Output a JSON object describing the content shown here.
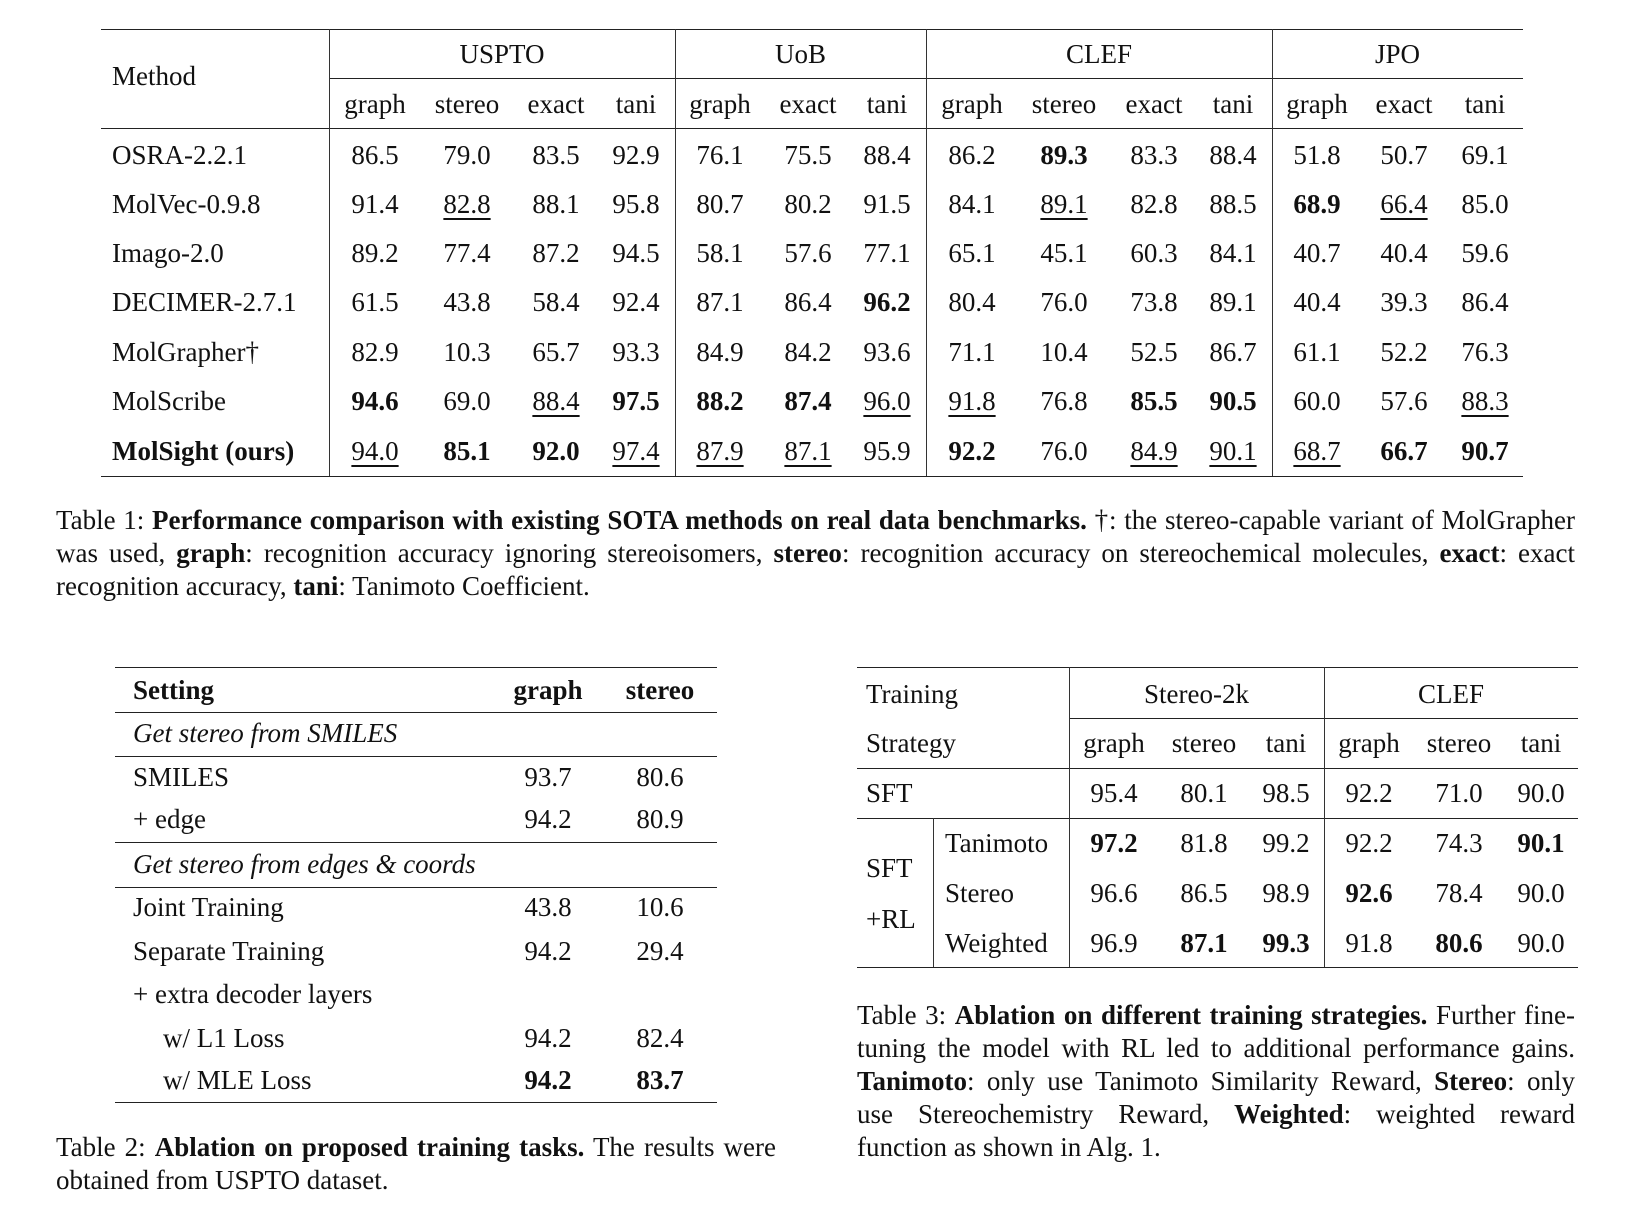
{
  "table1": {
    "method_header": "Method",
    "groups": [
      {
        "name": "USPTO",
        "cols": [
          "graph",
          "stereo",
          "exact",
          "tani"
        ]
      },
      {
        "name": "UoB",
        "cols": [
          "graph",
          "exact",
          "tani"
        ]
      },
      {
        "name": "CLEF",
        "cols": [
          "graph",
          "stereo",
          "exact",
          "tani"
        ]
      },
      {
        "name": "JPO",
        "cols": [
          "graph",
          "exact",
          "tani"
        ]
      }
    ],
    "rows": [
      {
        "method": "OSRA-2.2.1",
        "method_style": "",
        "values": [
          "86.5",
          "79.0",
          "83.5",
          "92.9",
          "76.1",
          "75.5",
          "88.4",
          "86.2",
          "89.3",
          "83.3",
          "88.4",
          "51.8",
          "50.7",
          "69.1"
        ],
        "styles": [
          "",
          "",
          "",
          "",
          "",
          "",
          "",
          "",
          "b",
          "",
          "",
          "",
          "",
          ""
        ]
      },
      {
        "method": "MolVec-0.9.8",
        "method_style": "",
        "values": [
          "91.4",
          "82.8",
          "88.1",
          "95.8",
          "80.7",
          "80.2",
          "91.5",
          "84.1",
          "89.1",
          "82.8",
          "88.5",
          "68.9",
          "66.4",
          "85.0"
        ],
        "styles": [
          "",
          "u",
          "",
          "",
          "",
          "",
          "",
          "",
          "u",
          "",
          "",
          "b",
          "u",
          ""
        ]
      },
      {
        "method": "Imago-2.0",
        "method_style": "",
        "values": [
          "89.2",
          "77.4",
          "87.2",
          "94.5",
          "58.1",
          "57.6",
          "77.1",
          "65.1",
          "45.1",
          "60.3",
          "84.1",
          "40.7",
          "40.4",
          "59.6"
        ],
        "styles": [
          "",
          "",
          "",
          "",
          "",
          "",
          "",
          "",
          "",
          "",
          "",
          "",
          "",
          ""
        ]
      },
      {
        "method": "DECIMER-2.7.1",
        "method_style": "",
        "values": [
          "61.5",
          "43.8",
          "58.4",
          "92.4",
          "87.1",
          "86.4",
          "96.2",
          "80.4",
          "76.0",
          "73.8",
          "89.1",
          "40.4",
          "39.3",
          "86.4"
        ],
        "styles": [
          "",
          "",
          "",
          "",
          "",
          "",
          "b",
          "",
          "",
          "",
          "",
          "",
          "",
          ""
        ]
      },
      {
        "method": "MolGrapher†",
        "method_style": "",
        "values": [
          "82.9",
          "10.3",
          "65.7",
          "93.3",
          "84.9",
          "84.2",
          "93.6",
          "71.1",
          "10.4",
          "52.5",
          "86.7",
          "61.1",
          "52.2",
          "76.3"
        ],
        "styles": [
          "",
          "",
          "",
          "",
          "",
          "",
          "",
          "",
          "",
          "",
          "",
          "",
          "",
          ""
        ]
      },
      {
        "method": "MolScribe",
        "method_style": "",
        "values": [
          "94.6",
          "69.0",
          "88.4",
          "97.5",
          "88.2",
          "87.4",
          "96.0",
          "91.8",
          "76.8",
          "85.5",
          "90.5",
          "60.0",
          "57.6",
          "88.3"
        ],
        "styles": [
          "b",
          "",
          "u",
          "b",
          "b",
          "b",
          "u",
          "u",
          "",
          "b",
          "b",
          "",
          "",
          "u"
        ]
      },
      {
        "method": "MolSight (ours)",
        "method_style": "b",
        "values": [
          "94.0",
          "85.1",
          "92.0",
          "97.4",
          "87.9",
          "87.1",
          "95.9",
          "92.2",
          "76.0",
          "84.9",
          "90.1",
          "68.7",
          "66.7",
          "90.7"
        ],
        "styles": [
          "u",
          "b",
          "b",
          "u",
          "u",
          "u",
          "",
          "b",
          "",
          "u",
          "u",
          "u",
          "b",
          "b"
        ]
      }
    ],
    "caption": [
      {
        "t": "Table 1: ",
        "s": ""
      },
      {
        "t": "Performance comparison with existing SOTA methods on real data benchmarks.",
        "s": "b"
      },
      {
        "t": " †: the stereo-capable variant of MolGrapher was used, ",
        "s": ""
      },
      {
        "t": "graph",
        "s": "b"
      },
      {
        "t": ": recognition accuracy ignoring stereoisomers, ",
        "s": ""
      },
      {
        "t": "stereo",
        "s": "b"
      },
      {
        "t": ": recognition accuracy on stereochemical molecules, ",
        "s": ""
      },
      {
        "t": "exact",
        "s": "b"
      },
      {
        "t": ": exact recognition accuracy, ",
        "s": ""
      },
      {
        "t": "tani",
        "s": "b"
      },
      {
        "t": ": Tanimoto Coefficient.",
        "s": ""
      }
    ]
  },
  "table2": {
    "headers": [
      "Setting",
      "graph",
      "stereo"
    ],
    "sections": [
      {
        "title": "Get stereo from SMILES",
        "rows": [
          {
            "label": "SMILES",
            "indent": false,
            "graph": "93.7",
            "stereo": "80.6",
            "style": ""
          },
          {
            "label": "+ edge",
            "indent": false,
            "graph": "94.2",
            "stereo": "80.9",
            "style": ""
          }
        ]
      },
      {
        "title": "Get stereo from edges & coords",
        "rows": [
          {
            "label": "Joint Training",
            "indent": false,
            "graph": "43.8",
            "stereo": "10.6",
            "style": ""
          },
          {
            "label": "Separate Training",
            "indent": false,
            "graph": "94.2",
            "stereo": "29.4",
            "style": ""
          },
          {
            "label": "+ extra decoder layers",
            "indent": false,
            "graph": "",
            "stereo": "",
            "style": ""
          },
          {
            "label": "w/ L1 Loss",
            "indent": true,
            "graph": "94.2",
            "stereo": "82.4",
            "style": ""
          },
          {
            "label": "w/ MLE Loss",
            "indent": true,
            "graph": "94.2",
            "stereo": "83.7",
            "style": "b"
          }
        ]
      }
    ],
    "caption": [
      {
        "t": "Table 2: ",
        "s": ""
      },
      {
        "t": "Ablation on proposed training tasks.",
        "s": "b"
      },
      {
        "t": " The results were obtained from USPTO dataset.",
        "s": ""
      }
    ]
  },
  "table3": {
    "header_line1": "Training",
    "header_line2": "Strategy",
    "groups": [
      {
        "name": "Stereo-2k",
        "cols": [
          "graph",
          "stereo",
          "tani"
        ]
      },
      {
        "name": "CLEF",
        "cols": [
          "graph",
          "stereo",
          "tani"
        ]
      }
    ],
    "sft_row": {
      "label": "SFT",
      "values": [
        "95.4",
        "80.1",
        "98.5",
        "92.2",
        "71.0",
        "90.0"
      ],
      "styles": [
        "",
        "",
        "",
        "",
        "",
        ""
      ]
    },
    "rl_group_label": [
      "SFT",
      "+RL"
    ],
    "rl_rows": [
      {
        "label": "Tanimoto",
        "values": [
          "97.2",
          "81.8",
          "99.2",
          "92.2",
          "74.3",
          "90.1"
        ],
        "styles": [
          "b",
          "",
          "",
          "",
          "",
          "b"
        ]
      },
      {
        "label": "Stereo",
        "values": [
          "96.6",
          "86.5",
          "98.9",
          "92.6",
          "78.4",
          "90.0"
        ],
        "styles": [
          "",
          "",
          "",
          "b",
          "",
          ""
        ]
      },
      {
        "label": "Weighted",
        "values": [
          "96.9",
          "87.1",
          "99.3",
          "91.8",
          "80.6",
          "90.0"
        ],
        "styles": [
          "",
          "b",
          "b",
          "",
          "b",
          ""
        ]
      }
    ],
    "caption": [
      {
        "t": "Table 3: ",
        "s": ""
      },
      {
        "t": "Ablation on different training strategies.",
        "s": "b"
      },
      {
        "t": " Further fine-tuning the model with RL led to additional performance gains. ",
        "s": ""
      },
      {
        "t": "Tanimoto",
        "s": "b"
      },
      {
        "t": ": only use Tanimoto Similarity Reward, ",
        "s": ""
      },
      {
        "t": "Stereo",
        "s": "b"
      },
      {
        "t": ": only use Stereochemistry Reward, ",
        "s": ""
      },
      {
        "t": "Weighted",
        "s": "b"
      },
      {
        "t": ": weighted reward function as shown in Alg. 1.",
        "s": ""
      }
    ]
  }
}
